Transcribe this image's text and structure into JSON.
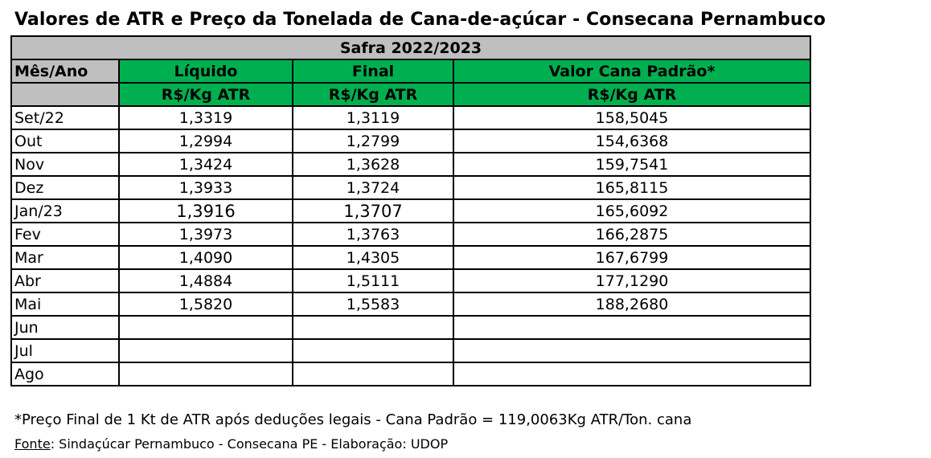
{
  "title": "Valores de ATR e Preço da Tonelada de Cana-de-açúcar - Consecana Pernambuco",
  "safra": "Safra 2022/2023",
  "headers": {
    "mes": "Mês/Ano",
    "liquido": "Líquido",
    "final": "Final",
    "valor": "Valor Cana Padrão*",
    "unit_liquido": "R$/Kg  ATR",
    "unit_final": "R$/Kg  ATR",
    "unit_valor": "R$/Kg  ATR"
  },
  "rows": [
    {
      "mes": "Set/22",
      "liquido": "1,3319",
      "final": "1,3119",
      "valor": "158,5045"
    },
    {
      "mes": "Out",
      "liquido": "1,2994",
      "final": "1,2799",
      "valor": "154,6368"
    },
    {
      "mes": "Nov",
      "liquido": "1,3424",
      "final": "1,3628",
      "valor": "159,7541"
    },
    {
      "mes": "Dez",
      "liquido": "1,3933",
      "final": "1,3724",
      "valor": "165,8115"
    },
    {
      "mes": "Jan/23",
      "liquido": "1,3916",
      "final": "1,3707",
      "valor": "165,6092"
    },
    {
      "mes": "Fev",
      "liquido": "1,3973",
      "final": "1,3763",
      "valor": "166,2875"
    },
    {
      "mes": "Mar",
      "liquido": "1,4090",
      "final": "1,4305",
      "valor": "167,6799"
    },
    {
      "mes": "Abr",
      "liquido": "1,4884",
      "final": "1,5111",
      "valor": "177,1290"
    },
    {
      "mes": "Mai",
      "liquido": "1,5820",
      "final": "1,5583",
      "valor": "188,2680"
    },
    {
      "mes": "Jun",
      "liquido": "",
      "final": "",
      "valor": ""
    },
    {
      "mes": "Jul",
      "liquido": "",
      "final": "",
      "valor": ""
    },
    {
      "mes": "Ago",
      "liquido": "",
      "final": "",
      "valor": ""
    }
  ],
  "note": "*Preço Final de 1 Kt de ATR após deduções legais - Cana Padrão = 119,0063Kg ATR/Ton. cana",
  "source_label": "Fonte",
  "source_text": ": Sindaçúcar Pernambuco - Consecana PE - Elaboração: UDOP",
  "colors": {
    "header_green": "#00b050",
    "header_gray": "#bfbfbf"
  }
}
